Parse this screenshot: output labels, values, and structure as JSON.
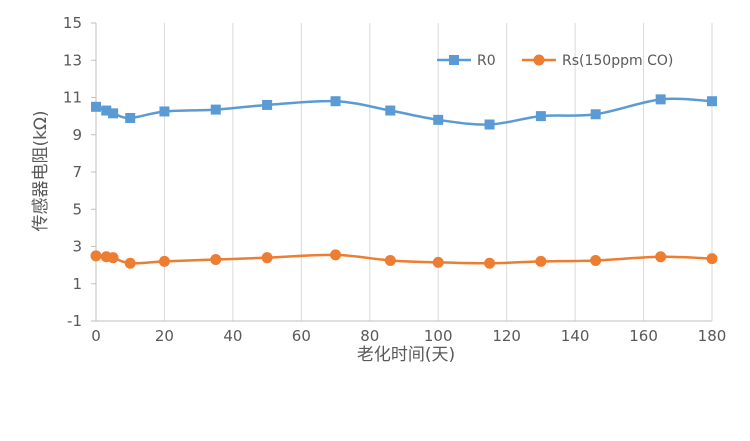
{
  "chart_data": {
    "type": "line",
    "title": "",
    "xlabel": "老化时间(天)",
    "ylabel": "传感器电阻(kΩ)",
    "xlim": [
      0,
      180
    ],
    "ylim": [
      -1,
      15
    ],
    "xticks": [
      0,
      20,
      40,
      60,
      80,
      100,
      120,
      140,
      160,
      180
    ],
    "yticks": [
      -1,
      1,
      3,
      5,
      7,
      9,
      11,
      13,
      15
    ],
    "grid": "vertical",
    "legend": "top-right",
    "series": [
      {
        "name": "R0",
        "color": "#5B9BD5",
        "marker": "square",
        "x": [
          0,
          3,
          5,
          10,
          20,
          35,
          50,
          70,
          86,
          100,
          115,
          130,
          146,
          165,
          180
        ],
        "y": [
          10.5,
          10.3,
          10.15,
          9.9,
          10.25,
          10.35,
          10.6,
          10.8,
          10.3,
          9.8,
          9.55,
          10.0,
          10.1,
          10.9,
          10.8
        ]
      },
      {
        "name": "Rs(150ppm CO)",
        "color": "#ED7D31",
        "marker": "circle",
        "x": [
          0,
          3,
          5,
          10,
          20,
          35,
          50,
          70,
          86,
          100,
          115,
          130,
          146,
          165,
          180
        ],
        "y": [
          2.5,
          2.45,
          2.4,
          2.1,
          2.2,
          2.3,
          2.4,
          2.55,
          2.25,
          2.15,
          2.1,
          2.2,
          2.25,
          2.45,
          2.35
        ]
      }
    ]
  }
}
